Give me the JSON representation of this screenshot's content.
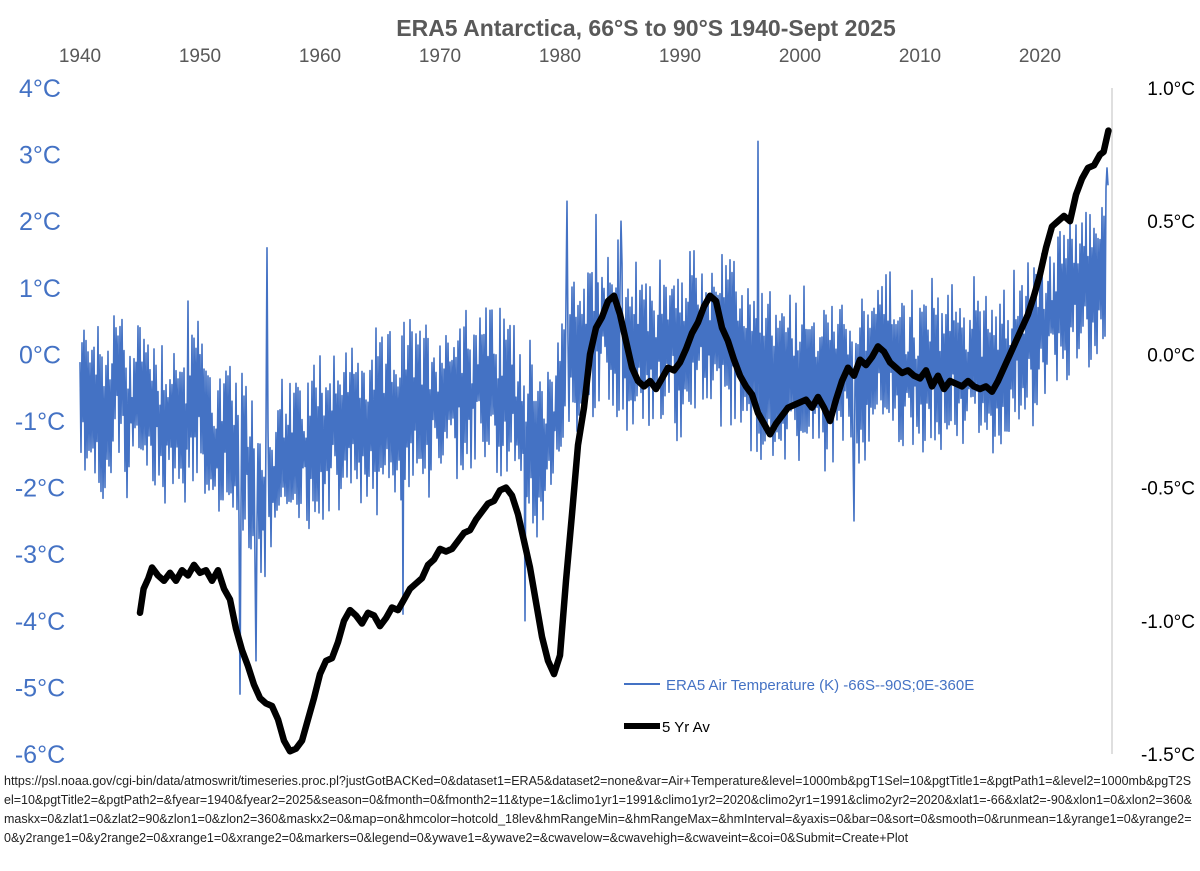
{
  "chart_data": {
    "type": "line",
    "title": "ERA5 Antarctica, 66°S to 90°S 1940-Sept 2025",
    "x_ticks": [
      1940,
      1950,
      1960,
      1970,
      1980,
      1990,
      2000,
      2010,
      2020
    ],
    "xlim": [
      1940,
      2026
    ],
    "y_left_ticks": [
      "4°C",
      "3°C",
      "2°C",
      "1°C",
      "0°C",
      "-1°C",
      "-2°C",
      "-3°C",
      "-4°C",
      "-5°C",
      "-6°C"
    ],
    "y_left_tick_values": [
      4,
      3,
      2,
      1,
      0,
      -1,
      -2,
      -3,
      -4,
      -5,
      -6
    ],
    "ylim_left": [
      -6,
      4
    ],
    "y_right_ticks": [
      "1.0°C",
      "0.5°C",
      "0.0°C",
      "-0.5°C",
      "-1.0°C",
      "-1.5°C"
    ],
    "y_right_tick_values": [
      1.0,
      0.5,
      0.0,
      -0.5,
      -1.0,
      -1.5
    ],
    "ylim_right": [
      -1.5,
      1.0
    ],
    "colors": {
      "monthly": "#4472C4",
      "average": "#000000",
      "left_axis": "#4472C4",
      "right_axis": "#000000",
      "title": "#595959",
      "axis_line": "#bfbfbf"
    },
    "series": [
      {
        "name": "ERA5 Air Temperature (K) -66S--90S;0E-360E",
        "axis": "left",
        "style": "thin-blue",
        "anchors": [
          [
            1940.0,
            -0.9
          ],
          [
            1941.0,
            -0.4
          ],
          [
            1942.0,
            -1.1
          ],
          [
            1943.0,
            -0.3
          ],
          [
            1944.0,
            -1.0
          ],
          [
            1945.0,
            -0.6
          ],
          [
            1946.0,
            -0.8
          ],
          [
            1947.0,
            -1.0
          ],
          [
            1948.0,
            -1.0
          ],
          [
            1949.0,
            -1.0
          ],
          [
            1950.0,
            -0.7
          ],
          [
            1951.0,
            -1.3
          ],
          [
            1952.0,
            -1.4
          ],
          [
            1953.0,
            -1.5
          ],
          [
            1954.0,
            -1.6
          ],
          [
            1955.0,
            -2.2
          ],
          [
            1956.0,
            -1.9
          ],
          [
            1957.0,
            -1.6
          ],
          [
            1958.0,
            -1.6
          ],
          [
            1959.0,
            -1.4
          ],
          [
            1960.0,
            -1.2
          ],
          [
            1961.0,
            -1.0
          ],
          [
            1962.0,
            -1.2
          ],
          [
            1963.0,
            -1.0
          ],
          [
            1964.0,
            -1.1
          ],
          [
            1965.0,
            -1.0
          ],
          [
            1966.0,
            -0.9
          ],
          [
            1967.0,
            -0.8
          ],
          [
            1968.0,
            -0.6
          ],
          [
            1969.0,
            -0.8
          ],
          [
            1970.0,
            -0.7
          ],
          [
            1971.0,
            -0.6
          ],
          [
            1972.0,
            -0.5
          ],
          [
            1973.0,
            -0.5
          ],
          [
            1974.0,
            -0.4
          ],
          [
            1975.0,
            -0.6
          ],
          [
            1976.0,
            -0.6
          ],
          [
            1977.0,
            -1.0
          ],
          [
            1978.0,
            -1.4
          ],
          [
            1979.0,
            -1.5
          ],
          [
            1980.0,
            -0.5
          ],
          [
            1981.0,
            0.1
          ],
          [
            1982.0,
            0.0
          ],
          [
            1983.0,
            0.3
          ],
          [
            1984.0,
            0.4
          ],
          [
            1985.0,
            0.3
          ],
          [
            1986.0,
            0.1
          ],
          [
            1987.0,
            0.0
          ],
          [
            1988.0,
            0.1
          ],
          [
            1989.0,
            0.2
          ],
          [
            1990.0,
            0.0
          ],
          [
            1991.0,
            0.3
          ],
          [
            1992.0,
            0.3
          ],
          [
            1993.0,
            0.3
          ],
          [
            1994.0,
            0.1
          ],
          [
            1995.0,
            0.1
          ],
          [
            1996.0,
            -0.2
          ],
          [
            1997.0,
            -0.2
          ],
          [
            1998.0,
            -0.4
          ],
          [
            1999.0,
            -0.4
          ],
          [
            2000.0,
            -0.3
          ],
          [
            2001.0,
            -0.4
          ],
          [
            2002.0,
            -0.3
          ],
          [
            2003.0,
            -0.4
          ],
          [
            2004.0,
            -0.2
          ],
          [
            2005.0,
            -0.3
          ],
          [
            2006.0,
            -0.1
          ],
          [
            2007.0,
            -0.1
          ],
          [
            2008.0,
            0.0
          ],
          [
            2009.0,
            -0.3
          ],
          [
            2010.0,
            -0.4
          ],
          [
            2011.0,
            -0.1
          ],
          [
            2012.0,
            -0.3
          ],
          [
            2013.0,
            -0.2
          ],
          [
            2014.0,
            -0.3
          ],
          [
            2015.0,
            -0.1
          ],
          [
            2016.0,
            -0.2
          ],
          [
            2017.0,
            -0.3
          ],
          [
            2018.0,
            0.0
          ],
          [
            2019.0,
            0.2
          ],
          [
            2020.0,
            0.3
          ],
          [
            2021.0,
            0.5
          ],
          [
            2022.0,
            0.6
          ],
          [
            2023.0,
            1.0
          ],
          [
            2024.0,
            1.1
          ],
          [
            2025.0,
            1.2
          ],
          [
            2025.7,
            1.4
          ]
        ],
        "amplitude": 1.05,
        "spikes": [
          [
            1943.0,
            0.4
          ],
          [
            1949.0,
            0.8
          ],
          [
            1953.3,
            -5.1
          ],
          [
            1954.7,
            -4.6
          ],
          [
            1955.6,
            1.6
          ],
          [
            1966.9,
            -3.9
          ],
          [
            1977.1,
            -4.0
          ],
          [
            1980.6,
            2.3
          ],
          [
            1983.0,
            2.1
          ],
          [
            1985.1,
            2.0
          ],
          [
            1996.5,
            3.2
          ],
          [
            2004.5,
            -2.5
          ],
          [
            2025.6,
            2.8
          ]
        ]
      },
      {
        "name": "5 Yr Av",
        "axis": "right",
        "style": "thick-black",
        "points": [
          [
            1945.0,
            -0.97
          ],
          [
            1945.3,
            -0.88
          ],
          [
            1945.7,
            -0.84
          ],
          [
            1946.0,
            -0.8
          ],
          [
            1946.5,
            -0.83
          ],
          [
            1947.0,
            -0.85
          ],
          [
            1947.5,
            -0.82
          ],
          [
            1948.0,
            -0.85
          ],
          [
            1948.5,
            -0.81
          ],
          [
            1949.0,
            -0.83
          ],
          [
            1949.5,
            -0.79
          ],
          [
            1950.0,
            -0.82
          ],
          [
            1950.5,
            -0.81
          ],
          [
            1951.0,
            -0.85
          ],
          [
            1951.5,
            -0.81
          ],
          [
            1952.0,
            -0.88
          ],
          [
            1952.5,
            -0.92
          ],
          [
            1953.0,
            -1.03
          ],
          [
            1953.5,
            -1.11
          ],
          [
            1954.0,
            -1.17
          ],
          [
            1954.5,
            -1.24
          ],
          [
            1955.0,
            -1.29
          ],
          [
            1955.5,
            -1.31
          ],
          [
            1956.0,
            -1.32
          ],
          [
            1956.5,
            -1.37
          ],
          [
            1957.0,
            -1.45
          ],
          [
            1957.5,
            -1.49
          ],
          [
            1958.0,
            -1.48
          ],
          [
            1958.5,
            -1.45
          ],
          [
            1959.0,
            -1.37
          ],
          [
            1959.5,
            -1.29
          ],
          [
            1960.0,
            -1.2
          ],
          [
            1960.5,
            -1.15
          ],
          [
            1961.0,
            -1.14
          ],
          [
            1961.5,
            -1.08
          ],
          [
            1962.0,
            -1.0
          ],
          [
            1962.5,
            -0.96
          ],
          [
            1963.0,
            -0.98
          ],
          [
            1963.5,
            -1.01
          ],
          [
            1964.0,
            -0.97
          ],
          [
            1964.5,
            -0.98
          ],
          [
            1965.0,
            -1.02
          ],
          [
            1965.5,
            -0.99
          ],
          [
            1966.0,
            -0.95
          ],
          [
            1966.5,
            -0.96
          ],
          [
            1967.0,
            -0.92
          ],
          [
            1967.5,
            -0.88
          ],
          [
            1968.0,
            -0.86
          ],
          [
            1968.5,
            -0.84
          ],
          [
            1969.0,
            -0.79
          ],
          [
            1969.5,
            -0.77
          ],
          [
            1970.0,
            -0.73
          ],
          [
            1970.5,
            -0.74
          ],
          [
            1971.0,
            -0.73
          ],
          [
            1971.5,
            -0.7
          ],
          [
            1972.0,
            -0.67
          ],
          [
            1972.5,
            -0.66
          ],
          [
            1973.0,
            -0.62
          ],
          [
            1973.5,
            -0.59
          ],
          [
            1974.0,
            -0.56
          ],
          [
            1974.5,
            -0.55
          ],
          [
            1975.0,
            -0.51
          ],
          [
            1975.5,
            -0.5
          ],
          [
            1976.0,
            -0.53
          ],
          [
            1976.5,
            -0.6
          ],
          [
            1977.0,
            -0.7
          ],
          [
            1977.5,
            -0.8
          ],
          [
            1978.0,
            -0.93
          ],
          [
            1978.5,
            -1.06
          ],
          [
            1979.0,
            -1.15
          ],
          [
            1979.5,
            -1.2
          ],
          [
            1980.0,
            -1.13
          ],
          [
            1980.5,
            -0.85
          ],
          [
            1981.0,
            -0.6
          ],
          [
            1981.5,
            -0.34
          ],
          [
            1982.0,
            -0.2
          ],
          [
            1982.5,
            0.0
          ],
          [
            1983.0,
            0.1
          ],
          [
            1983.5,
            0.14
          ],
          [
            1984.0,
            0.2
          ],
          [
            1984.5,
            0.22
          ],
          [
            1985.0,
            0.15
          ],
          [
            1985.5,
            0.05
          ],
          [
            1986.0,
            -0.05
          ],
          [
            1986.5,
            -0.1
          ],
          [
            1987.0,
            -0.12
          ],
          [
            1987.5,
            -0.1
          ],
          [
            1988.0,
            -0.13
          ],
          [
            1988.5,
            -0.09
          ],
          [
            1989.0,
            -0.05
          ],
          [
            1989.5,
            -0.06
          ],
          [
            1990.0,
            -0.03
          ],
          [
            1990.5,
            0.02
          ],
          [
            1991.0,
            0.08
          ],
          [
            1991.5,
            0.12
          ],
          [
            1992.0,
            0.18
          ],
          [
            1992.5,
            0.22
          ],
          [
            1993.0,
            0.2
          ],
          [
            1993.5,
            0.1
          ],
          [
            1994.0,
            0.05
          ],
          [
            1994.5,
            -0.02
          ],
          [
            1995.0,
            -0.08
          ],
          [
            1995.5,
            -0.12
          ],
          [
            1996.0,
            -0.15
          ],
          [
            1996.5,
            -0.22
          ],
          [
            1997.0,
            -0.26
          ],
          [
            1997.5,
            -0.3
          ],
          [
            1998.0,
            -0.26
          ],
          [
            1998.5,
            -0.23
          ],
          [
            1999.0,
            -0.2
          ],
          [
            1999.5,
            -0.19
          ],
          [
            2000.0,
            -0.18
          ],
          [
            2000.5,
            -0.17
          ],
          [
            2001.0,
            -0.2
          ],
          [
            2001.5,
            -0.16
          ],
          [
            2002.0,
            -0.2
          ],
          [
            2002.5,
            -0.25
          ],
          [
            2003.0,
            -0.17
          ],
          [
            2003.5,
            -0.1
          ],
          [
            2004.0,
            -0.05
          ],
          [
            2004.5,
            -0.08
          ],
          [
            2005.0,
            -0.02
          ],
          [
            2005.5,
            -0.04
          ],
          [
            2006.0,
            -0.01
          ],
          [
            2006.5,
            0.03
          ],
          [
            2007.0,
            0.01
          ],
          [
            2007.5,
            -0.03
          ],
          [
            2008.0,
            -0.05
          ],
          [
            2008.5,
            -0.07
          ],
          [
            2009.0,
            -0.06
          ],
          [
            2009.5,
            -0.08
          ],
          [
            2010.0,
            -0.09
          ],
          [
            2010.5,
            -0.06
          ],
          [
            2011.0,
            -0.12
          ],
          [
            2011.5,
            -0.08
          ],
          [
            2012.0,
            -0.13
          ],
          [
            2012.5,
            -0.1
          ],
          [
            2013.0,
            -0.11
          ],
          [
            2013.5,
            -0.12
          ],
          [
            2014.0,
            -0.1
          ],
          [
            2014.5,
            -0.12
          ],
          [
            2015.0,
            -0.13
          ],
          [
            2015.5,
            -0.12
          ],
          [
            2016.0,
            -0.14
          ],
          [
            2016.5,
            -0.1
          ],
          [
            2017.0,
            -0.05
          ],
          [
            2017.5,
            0.0
          ],
          [
            2018.0,
            0.05
          ],
          [
            2018.5,
            0.1
          ],
          [
            2019.0,
            0.15
          ],
          [
            2019.5,
            0.22
          ],
          [
            2020.0,
            0.3
          ],
          [
            2020.5,
            0.4
          ],
          [
            2021.0,
            0.48
          ],
          [
            2021.5,
            0.5
          ],
          [
            2022.0,
            0.52
          ],
          [
            2022.5,
            0.5
          ],
          [
            2023.0,
            0.6
          ],
          [
            2023.5,
            0.66
          ],
          [
            2024.0,
            0.7
          ],
          [
            2024.5,
            0.71
          ],
          [
            2025.0,
            0.75
          ],
          [
            2025.3,
            0.76
          ],
          [
            2025.7,
            0.84
          ]
        ]
      }
    ],
    "legend": {
      "placement": "bottom-right-inside",
      "items": [
        "ERA5 Air Temperature (K) -66S--90S;0E-360E",
        "5 Yr Av"
      ]
    }
  },
  "source": {
    "url": "https://psl.noaa.gov/cgi-bin/data/atmoswrit/timeseries.proc.pl?justGotBACKed=0&dataset1=ERA5&dataset2=none&var=Air+Temperature&level=1000mb&pgT1Sel=10&pgtTitle1=&pgtPath1=&level2=1000mb&pgT2Sel=10&pgtTitle2=&pgtPath2=&fyear=1940&fyear2=2025&season=0&fmonth=0&fmonth2=11&type=1&climo1yr1=1991&climo1yr2=2020&climo2yr1=1991&climo2yr2=2020&xlat1=-66&xlat2=-90&xlon1=0&xlon2=360&maskx=0&zlat1=0&zlat2=90&zlon1=0&zlon2=360&maskx2=0&map=on&hmcolor=hotcold_18lev&hmRangeMin=&hmRangeMax=&hmInterval=&yaxis=0&bar=0&sort=0&smooth=0&runmean=1&yrange1=0&yrange2=0&y2range1=0&y2range2=0&xrange1=0&xrange2=0&markers=0&legend=0&ywave1=&ywave2=&cwavelow=&cwavehigh=&cwaveint=&coi=0&Submit=Create+Plot"
  }
}
